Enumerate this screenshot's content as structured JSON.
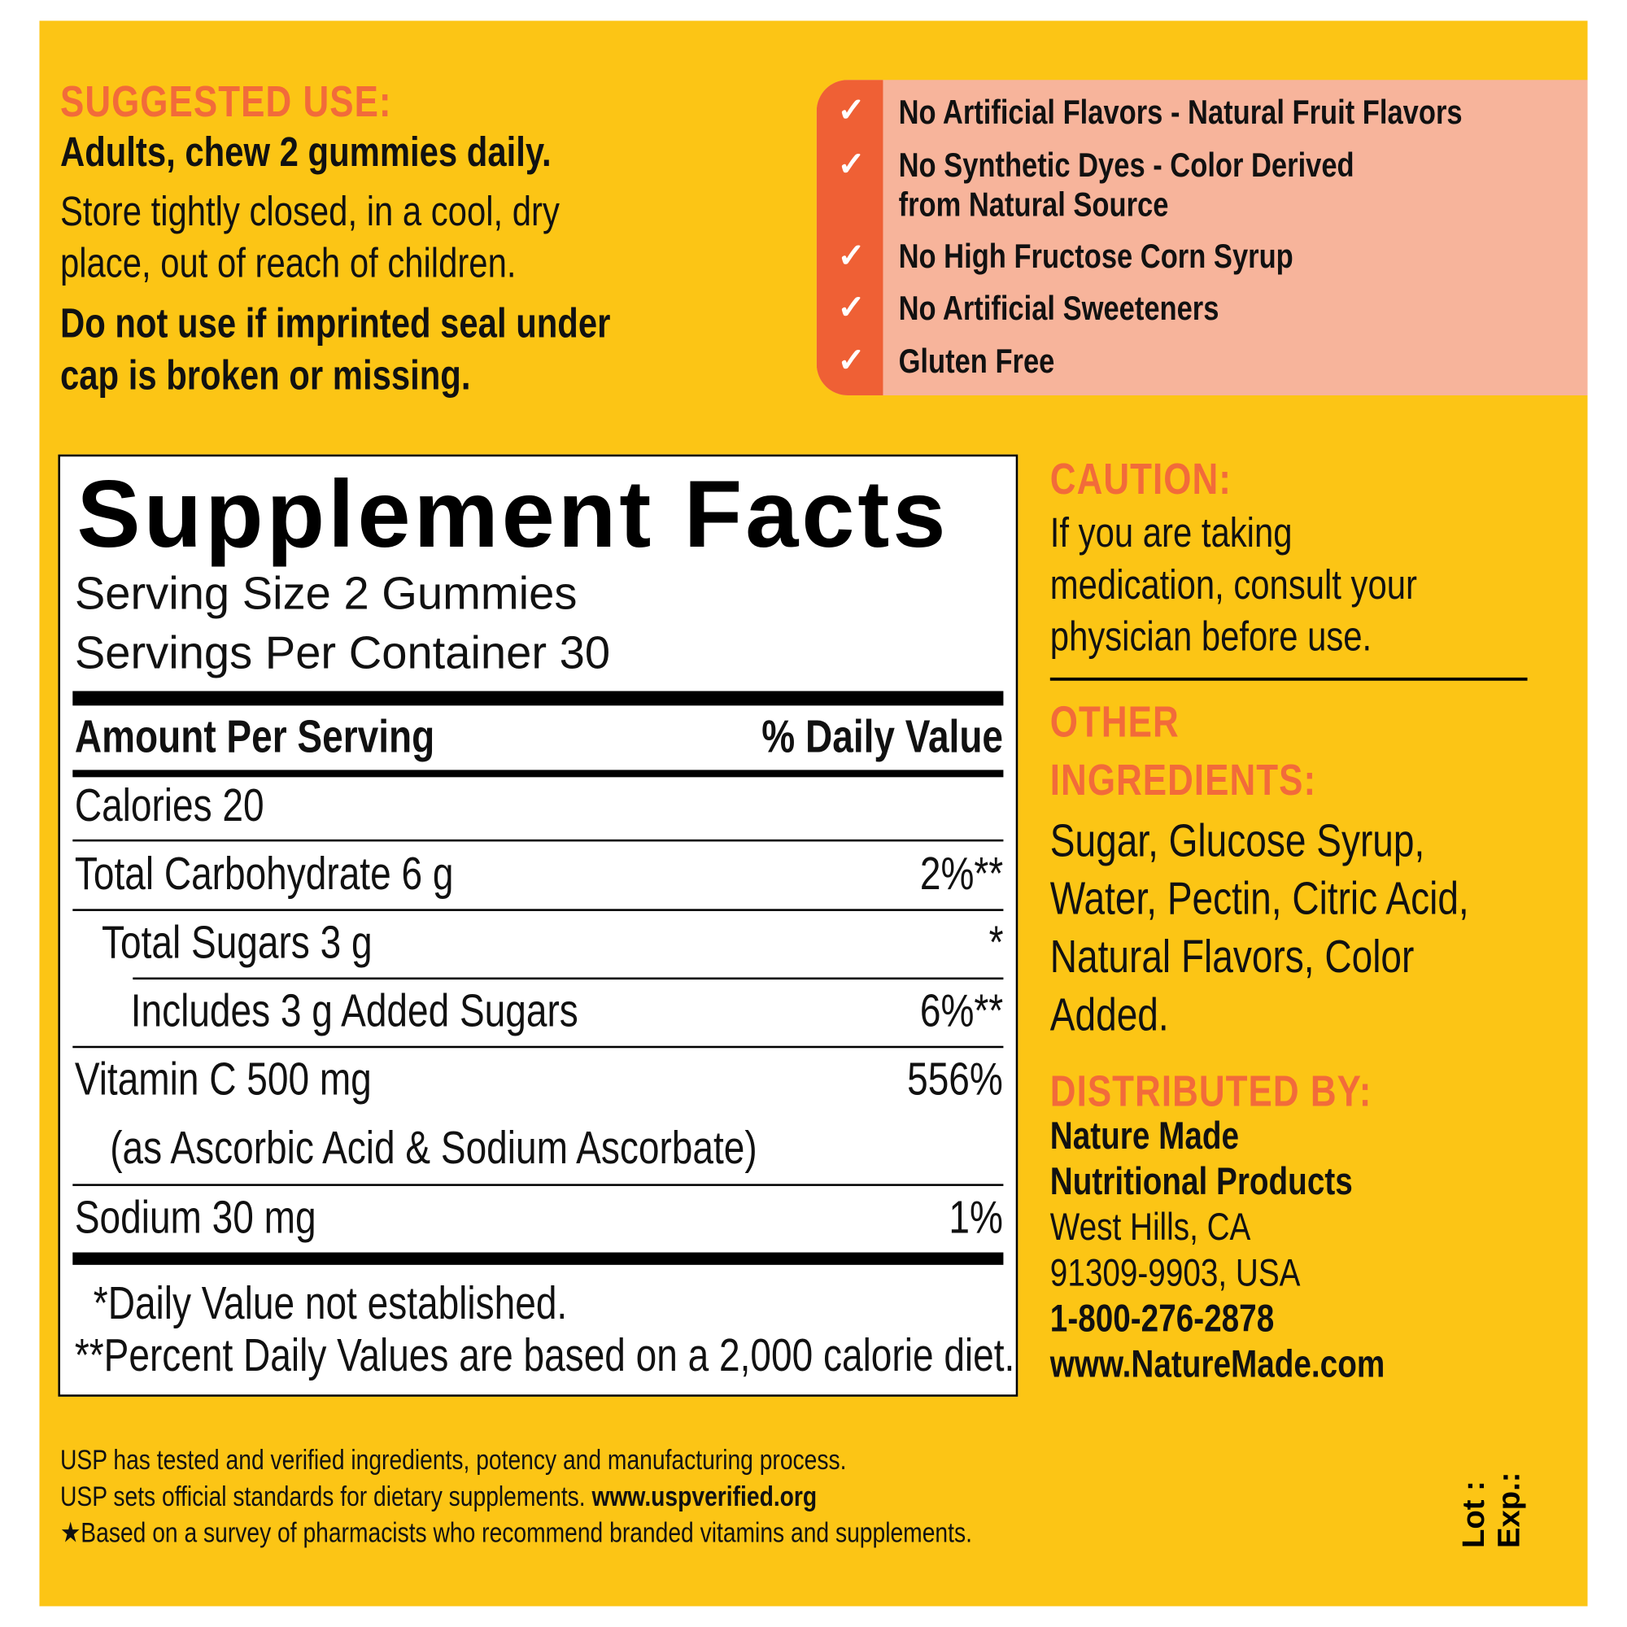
{
  "colors": {
    "background": "#FCC515",
    "heading": "#F26B3A",
    "claims_panel": "#F7B49B",
    "check_column": "#EF6035"
  },
  "suggested_use": {
    "heading": "SUGGESTED USE:",
    "line1": "Adults, chew 2 gummies daily.",
    "line2": "Store tightly closed, in a cool, dry",
    "line3": "place, out of reach of children.",
    "line4": "Do not use if imprinted seal under",
    "line5": "cap is broken or  missing."
  },
  "claims": {
    "icon": "check-icon",
    "check": "✓",
    "items": [
      "No Artificial Flavors - Natural Fruit Flavors",
      "No Synthetic Dyes - Color Derived",
      "from Natural Source",
      "No High Fructose Corn Syrup",
      "No Artificial Sweeteners",
      "Gluten Free"
    ]
  },
  "facts": {
    "title": "Supplement Facts",
    "serving_size": "Serving Size 2 Gummies",
    "servings": "Servings Per Container 30",
    "amount_header": "Amount Per Serving",
    "dv_header": "% Daily Value",
    "rows": [
      {
        "label": "Calories  20",
        "dv": ""
      },
      {
        "label": "Total Carbohydrate  6 g",
        "dv": "2%**"
      },
      {
        "label": "Total Sugars  3 g",
        "dv": "*"
      },
      {
        "label": "Includes 3 g Added Sugars",
        "dv": "6%**"
      },
      {
        "label": "Vitamin C  500 mg",
        "dv": "556%"
      },
      {
        "label": "(as Ascorbic Acid & Sodium Ascorbate)",
        "dv": ""
      },
      {
        "label": "Sodium  30 mg",
        "dv": "1%"
      }
    ],
    "footnote1": "*Daily Value not established.",
    "footnote2": "**Percent Daily Values are based on a 2,000 calorie diet."
  },
  "caution": {
    "heading": "CAUTION:",
    "line1": "If you are taking",
    "line2": "medication, consult your",
    "line3": "physician before use."
  },
  "other_ingredients": {
    "heading1": "OTHER",
    "heading2": "INGREDIENTS:",
    "line1": "Sugar, Glucose Syrup,",
    "line2": "Water, Pectin, Citric Acid,",
    "line3": "Natural Flavors, Color",
    "line4": "Added."
  },
  "distributor": {
    "heading": "DISTRIBUTED BY:",
    "name1": "Nature Made",
    "name2": "Nutritional Products",
    "city": "West Hills, CA",
    "zip": "91309-9903, USA",
    "phone": "1-800-276-2878",
    "website": "www.NatureMade.com"
  },
  "footer": {
    "line1": "USP has tested and verified ingredients, potency and manufacturing process.",
    "line2a": "USP sets official standards for dietary supplements. ",
    "line2b": "www.uspverified.org",
    "line3": "★Based on a survey of pharmacists who recommend branded vitamins and supplements."
  },
  "lot": {
    "lot": "Lot :",
    "exp": "Exp.:"
  }
}
